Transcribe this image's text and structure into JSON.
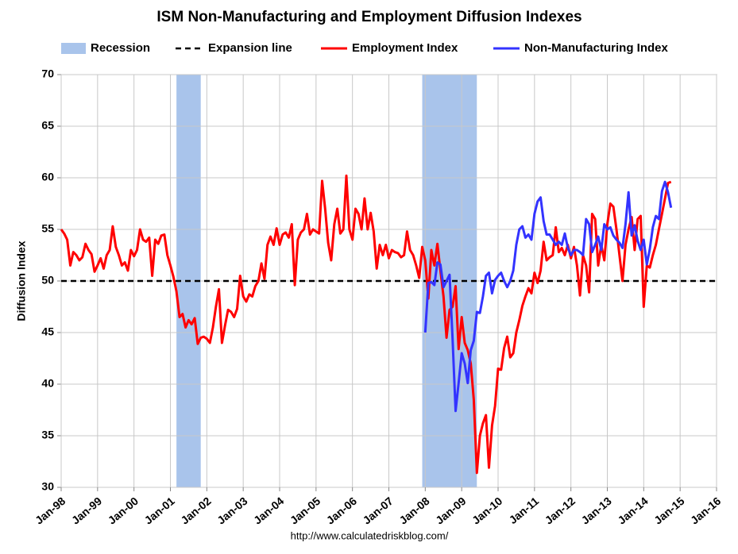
{
  "chart_data": {
    "type": "line",
    "title": "ISM Non-Manufacturing and Employment Diffusion Indexes",
    "ylabel": "Diffusion Index",
    "source": "http://www.calculatedriskblog.com/",
    "recession": {
      "name": "Recession",
      "color": "#a9c4eb",
      "periods": [
        [
          "Mar-01",
          "Nov-01"
        ],
        [
          "Dec-07",
          "Jun-09"
        ]
      ]
    },
    "reference_line": {
      "name": "Expansion line",
      "value": 50,
      "color": "#000000"
    },
    "xlim": [
      "Jan-98",
      "Jan-16"
    ],
    "xticks": [
      "Jan-98",
      "Jan-99",
      "Jan-00",
      "Jan-01",
      "Jan-02",
      "Jan-03",
      "Jan-04",
      "Jan-05",
      "Jan-06",
      "Jan-07",
      "Jan-08",
      "Jan-09",
      "Jan-10",
      "Jan-11",
      "Jan-12",
      "Jan-13",
      "Jan-14",
      "Jan-15",
      "Jan-16"
    ],
    "ylim": [
      30,
      70
    ],
    "yticks": [
      30,
      35,
      40,
      45,
      50,
      55,
      60,
      65,
      70
    ],
    "grid": true,
    "x": [
      "Jan-98",
      "Feb-98",
      "Mar-98",
      "Apr-98",
      "May-98",
      "Jun-98",
      "Jul-98",
      "Aug-98",
      "Sep-98",
      "Oct-98",
      "Nov-98",
      "Dec-98",
      "Jan-99",
      "Feb-99",
      "Mar-99",
      "Apr-99",
      "May-99",
      "Jun-99",
      "Jul-99",
      "Aug-99",
      "Sep-99",
      "Oct-99",
      "Nov-99",
      "Dec-99",
      "Jan-00",
      "Feb-00",
      "Mar-00",
      "Apr-00",
      "May-00",
      "Jun-00",
      "Jul-00",
      "Aug-00",
      "Sep-00",
      "Oct-00",
      "Nov-00",
      "Dec-00",
      "Jan-01",
      "Feb-01",
      "Mar-01",
      "Apr-01",
      "May-01",
      "Jun-01",
      "Jul-01",
      "Aug-01",
      "Sep-01",
      "Oct-01",
      "Nov-01",
      "Dec-01",
      "Jan-02",
      "Feb-02",
      "Mar-02",
      "Apr-02",
      "May-02",
      "Jun-02",
      "Jul-02",
      "Aug-02",
      "Sep-02",
      "Oct-02",
      "Nov-02",
      "Dec-02",
      "Jan-03",
      "Feb-03",
      "Mar-03",
      "Apr-03",
      "May-03",
      "Jun-03",
      "Jul-03",
      "Aug-03",
      "Sep-03",
      "Oct-03",
      "Nov-03",
      "Dec-03",
      "Jan-04",
      "Feb-04",
      "Mar-04",
      "Apr-04",
      "May-04",
      "Jun-04",
      "Jul-04",
      "Aug-04",
      "Sep-04",
      "Oct-04",
      "Nov-04",
      "Dec-04",
      "Jan-05",
      "Feb-05",
      "Mar-05",
      "Apr-05",
      "May-05",
      "Jun-05",
      "Jul-05",
      "Aug-05",
      "Sep-05",
      "Oct-05",
      "Nov-05",
      "Dec-05",
      "Jan-06",
      "Feb-06",
      "Mar-06",
      "Apr-06",
      "May-06",
      "Jun-06",
      "Jul-06",
      "Aug-06",
      "Sep-06",
      "Oct-06",
      "Nov-06",
      "Dec-06",
      "Jan-07",
      "Feb-07",
      "Mar-07",
      "Apr-07",
      "May-07",
      "Jun-07",
      "Jul-07",
      "Aug-07",
      "Sep-07",
      "Oct-07",
      "Nov-07",
      "Dec-07",
      "Jan-08",
      "Feb-08",
      "Mar-08",
      "Apr-08",
      "May-08",
      "Jun-08",
      "Jul-08",
      "Aug-08",
      "Sep-08",
      "Oct-08",
      "Nov-08",
      "Dec-08",
      "Jan-09",
      "Feb-09",
      "Mar-09",
      "Apr-09",
      "May-09",
      "Jun-09",
      "Jul-09",
      "Aug-09",
      "Sep-09",
      "Oct-09",
      "Nov-09",
      "Dec-09",
      "Jan-10",
      "Feb-10",
      "Mar-10",
      "Apr-10",
      "May-10",
      "Jun-10",
      "Jul-10",
      "Aug-10",
      "Sep-10",
      "Oct-10",
      "Nov-10",
      "Dec-10",
      "Jan-11",
      "Feb-11",
      "Mar-11",
      "Apr-11",
      "May-11",
      "Jun-11",
      "Jul-11",
      "Aug-11",
      "Sep-11",
      "Oct-11",
      "Nov-11",
      "Dec-11",
      "Jan-12",
      "Feb-12",
      "Mar-12",
      "Apr-12",
      "May-12",
      "Jun-12",
      "Jul-12",
      "Aug-12",
      "Sep-12",
      "Oct-12",
      "Nov-12",
      "Dec-12",
      "Jan-13",
      "Feb-13",
      "Mar-13",
      "Apr-13",
      "May-13",
      "Jun-13",
      "Jul-13",
      "Aug-13",
      "Sep-13",
      "Oct-13",
      "Nov-13",
      "Dec-13",
      "Jan-14",
      "Feb-14",
      "Mar-14",
      "Apr-14",
      "May-14",
      "Jun-14",
      "Jul-14",
      "Aug-14",
      "Sep-14",
      "Oct-14"
    ],
    "series": [
      {
        "name": "Employment Index",
        "color": "#ff0000",
        "values": [
          55,
          54.6,
          54,
          51.5,
          52.8,
          52.5,
          52,
          52.3,
          53.6,
          53,
          52.6,
          50.9,
          51.5,
          52.2,
          51.2,
          52.5,
          53,
          55.3,
          53.3,
          52.5,
          51.5,
          51.8,
          51,
          53,
          52.4,
          53,
          55,
          54,
          53.8,
          54.2,
          50.5,
          54,
          53.6,
          54.4,
          54.5,
          52.5,
          51.5,
          50.4,
          49,
          46.5,
          46.8,
          45.5,
          46.2,
          45.8,
          46.4,
          43.9,
          44.5,
          44.6,
          44.4,
          44,
          45.5,
          47.5,
          49.2,
          44,
          45.7,
          47.2,
          47,
          46.5,
          47.3,
          50.5,
          48.5,
          48,
          48.7,
          48.5,
          49.5,
          50,
          51.7,
          50.2,
          53.5,
          54.3,
          53.5,
          55.1,
          53.5,
          54.5,
          54.7,
          54.2,
          55.5,
          49.6,
          54,
          54.7,
          55,
          56.5,
          54.5,
          55,
          54.8,
          54.6,
          59.7,
          57,
          53.7,
          52,
          55.5,
          57,
          54.6,
          55,
          60.2,
          55,
          54,
          57,
          56.5,
          55,
          58,
          55,
          56.6,
          54.8,
          51.2,
          53.5,
          52.5,
          53.5,
          52.2,
          53,
          52.8,
          52.7,
          52.3,
          52.5,
          54.8,
          53,
          52.5,
          51.5,
          50.3,
          53.3,
          52,
          48.3,
          53,
          51.5,
          53.6,
          51,
          48.5,
          44.5,
          47.2,
          47.5,
          49.5,
          43.4,
          46.5,
          44,
          43.3,
          42,
          38.5,
          31.4,
          35,
          36.2,
          37,
          31.9,
          36,
          37.9,
          41.5,
          41.4,
          43.5,
          44.6,
          42.6,
          43,
          45,
          46.2,
          47.6,
          48.5,
          49.3,
          48.8,
          50.8,
          49.8,
          51,
          53.8,
          52,
          52.3,
          52.5,
          55.2,
          52.8,
          53.2,
          52.5,
          53.5,
          52.2,
          53.3,
          51.5,
          48.6,
          52.5,
          51.5,
          48.9,
          56.5,
          56,
          51.5,
          53.5,
          52,
          55.5,
          57.5,
          57.2,
          55,
          52.5,
          50,
          53.5,
          55,
          56.2,
          53,
          56,
          56.3,
          47.5,
          51.5,
          51.3,
          52.5,
          53.5,
          55,
          56.5,
          58,
          59.5,
          59.6
        ]
      },
      {
        "name": "Non-Manufacturing Index",
        "color": "#3333ff",
        "values": [
          null,
          null,
          null,
          null,
          null,
          null,
          null,
          null,
          null,
          null,
          null,
          null,
          null,
          null,
          null,
          null,
          null,
          null,
          null,
          null,
          null,
          null,
          null,
          null,
          null,
          null,
          null,
          null,
          null,
          null,
          null,
          null,
          null,
          null,
          null,
          null,
          null,
          null,
          null,
          null,
          null,
          null,
          null,
          null,
          null,
          null,
          null,
          null,
          null,
          null,
          null,
          null,
          null,
          null,
          null,
          null,
          null,
          null,
          null,
          null,
          null,
          null,
          null,
          null,
          null,
          null,
          null,
          null,
          null,
          null,
          null,
          null,
          null,
          null,
          null,
          null,
          null,
          null,
          null,
          null,
          null,
          null,
          null,
          null,
          null,
          null,
          null,
          null,
          null,
          null,
          null,
          null,
          null,
          null,
          null,
          null,
          null,
          null,
          null,
          null,
          null,
          null,
          null,
          null,
          null,
          null,
          null,
          null,
          null,
          null,
          null,
          null,
          null,
          null,
          null,
          null,
          null,
          null,
          null,
          null,
          45,
          49.8,
          49.9,
          49.6,
          51.8,
          51.6,
          49.4,
          50,
          50.6,
          44.4,
          37.4,
          40.1,
          43,
          42,
          40.1,
          43.3,
          44.2,
          47,
          46.9,
          48.5,
          50.5,
          50.8,
          48.8,
          50.1,
          50.5,
          50.8,
          50,
          49.4,
          50,
          51,
          53.5,
          55,
          55.3,
          54.2,
          54.5,
          54,
          56.5,
          57.7,
          58.1,
          55.8,
          54.5,
          54.5,
          54,
          53.5,
          53.8,
          53.5,
          54.6,
          53.2,
          52.5,
          53,
          53,
          52.8,
          52.5,
          56,
          55.5,
          52.8,
          53.5,
          54.3,
          53,
          55.5,
          55,
          55.2,
          54.4,
          54,
          53.7,
          53.2,
          55.5,
          58.6,
          54.4,
          55.4,
          53.9,
          53,
          54,
          51.6,
          53.1,
          55.2,
          56.3,
          56,
          58.7,
          59.6,
          58.6,
          57.1
        ]
      }
    ]
  }
}
